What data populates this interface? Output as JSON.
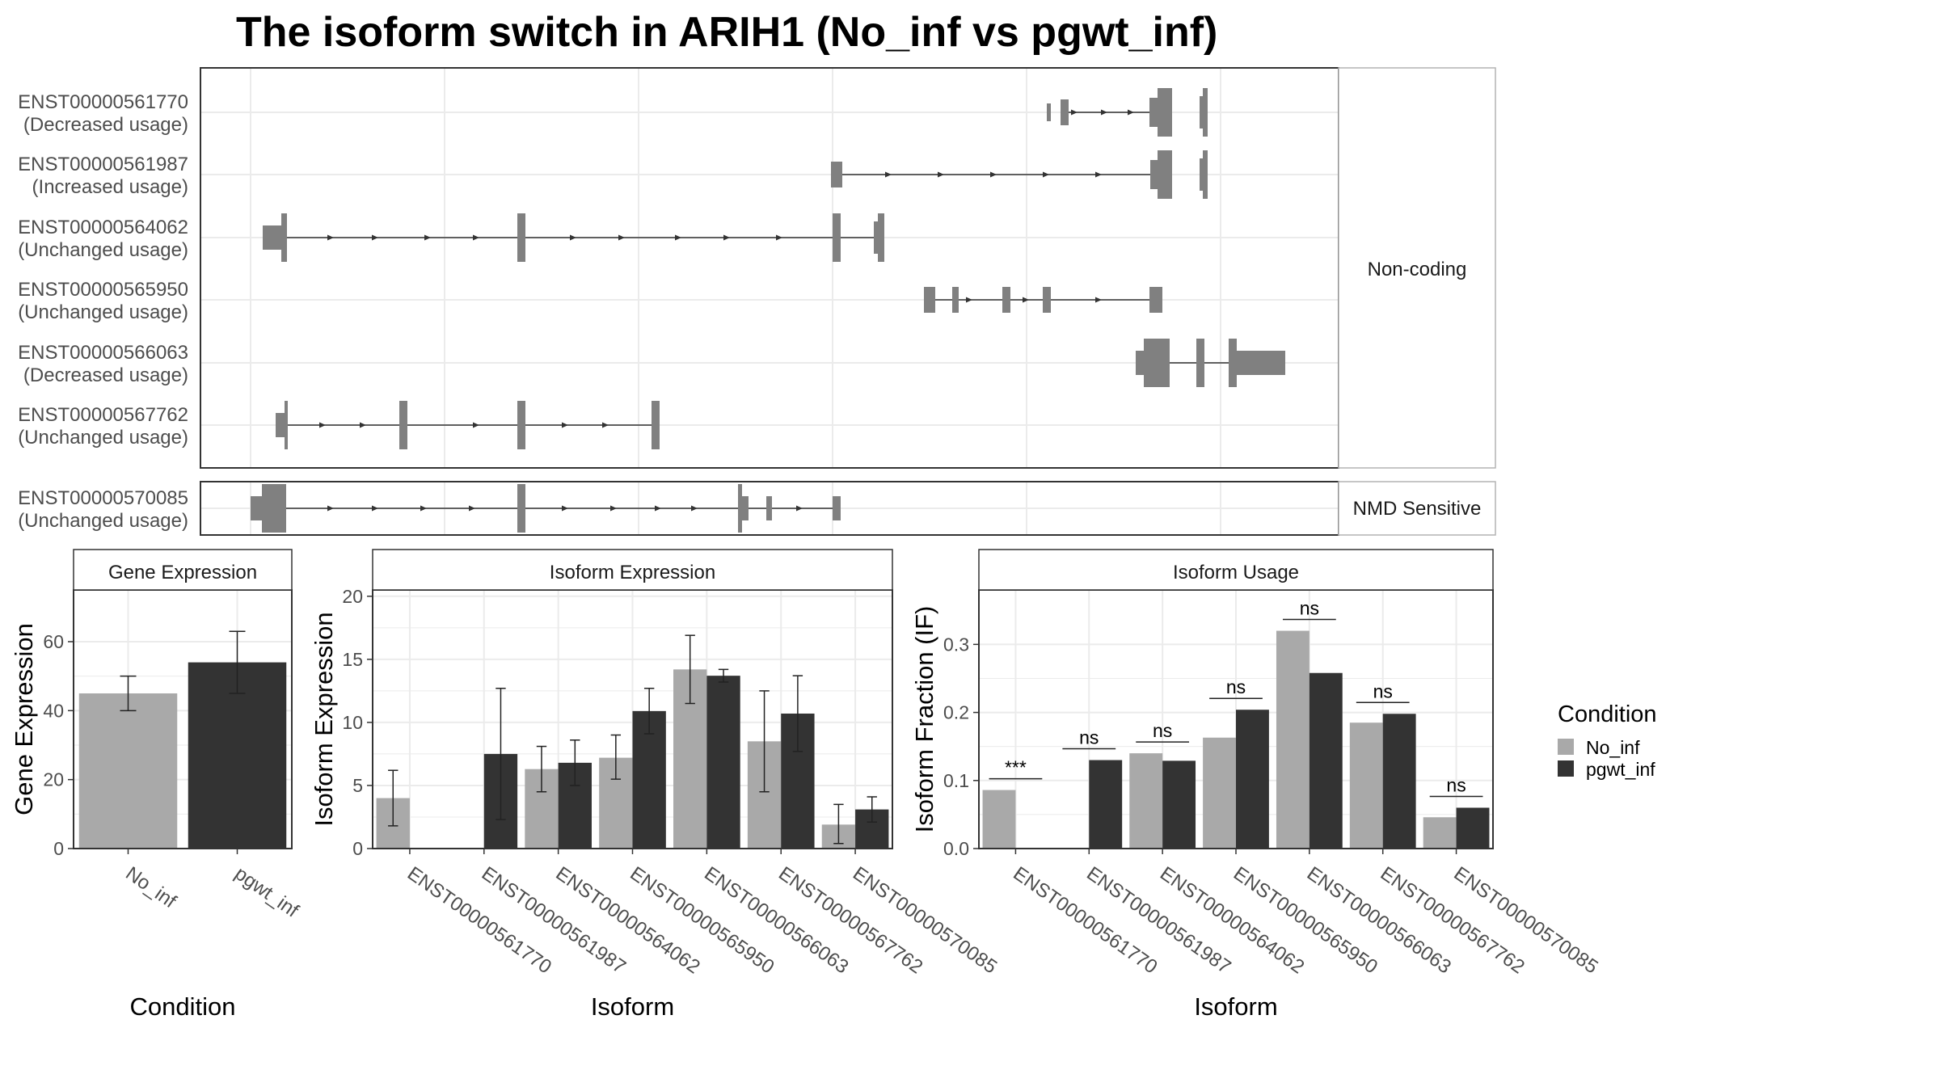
{
  "title": "The isoform switch in ARIH1 (No_inf vs pgwt_inf)",
  "colors": {
    "No_inf": "#a9a9a9",
    "pgwt_inf": "#333333",
    "exon": "#808080",
    "panel_border": "#333333",
    "grid": "#ebebeb",
    "strip_border": "#b3b3b3"
  },
  "structure": {
    "facets": [
      {
        "label": "Non-coding",
        "rows": [
          {
            "id": "ENST00000561770",
            "usage": "(Decreased usage)"
          },
          {
            "id": "ENST00000561987",
            "usage": "(Increased usage)"
          },
          {
            "id": "ENST00000564062",
            "usage": "(Unchanged usage)"
          },
          {
            "id": "ENST00000565950",
            "usage": "(Unchanged usage)"
          },
          {
            "id": "ENST00000566063",
            "usage": "(Decreased usage)"
          },
          {
            "id": "ENST00000567762",
            "usage": "(Unchanged usage)"
          }
        ]
      },
      {
        "label": "NMD Sensitive",
        "rows": [
          {
            "id": "ENST00000570085",
            "usage": "(Unchanged usage)"
          }
        ]
      }
    ]
  },
  "legend": {
    "title": "Condition",
    "items": [
      "No_inf",
      "pgwt_inf"
    ]
  },
  "chart_data": [
    {
      "type": "bar",
      "title": "Gene Expression",
      "xlabel": "Condition",
      "ylabel": "Gene Expression",
      "categories": [
        "No_inf",
        "pgwt_inf"
      ],
      "values": [
        45,
        54
      ],
      "error_low": [
        40,
        45
      ],
      "error_high": [
        50,
        63
      ],
      "ylim": [
        0,
        75
      ],
      "yticks": [
        0,
        20,
        40,
        60
      ],
      "grid": true
    },
    {
      "type": "bar",
      "title": "Isoform Expression",
      "xlabel": "Isoform",
      "ylabel": "Isoform Expression",
      "categories": [
        "ENST00000561770",
        "ENST00000561987",
        "ENST00000564062",
        "ENST00000565950",
        "ENST00000566063",
        "ENST00000567762",
        "ENST00000570085"
      ],
      "series": [
        {
          "name": "No_inf",
          "values": [
            4.0,
            0,
            6.3,
            7.2,
            14.2,
            8.5,
            1.9
          ],
          "error_low": [
            1.8,
            0,
            4.5,
            5.5,
            11.5,
            4.5,
            0.4
          ],
          "error_high": [
            6.2,
            0,
            8.1,
            9.0,
            16.9,
            12.5,
            3.5
          ]
        },
        {
          "name": "pgwt_inf",
          "values": [
            0,
            7.5,
            6.8,
            10.9,
            13.7,
            10.7,
            3.1
          ],
          "error_low": [
            0,
            2.3,
            5.0,
            9.1,
            13.2,
            7.7,
            2.1
          ],
          "error_high": [
            0,
            12.7,
            8.6,
            12.7,
            14.2,
            13.7,
            4.1
          ]
        }
      ],
      "ylim": [
        0,
        20.5
      ],
      "yticks": [
        0,
        5,
        10,
        15,
        20
      ],
      "grid": true
    },
    {
      "type": "bar",
      "title": "Isoform Usage",
      "xlabel": "Isoform",
      "ylabel": "Isoform Fraction (IF)",
      "categories": [
        "ENST00000561770",
        "ENST00000561987",
        "ENST00000564062",
        "ENST00000565950",
        "ENST00000566063",
        "ENST00000567762",
        "ENST00000570085"
      ],
      "series": [
        {
          "name": "No_inf",
          "values": [
            0.086,
            0,
            0.14,
            0.163,
            0.32,
            0.185,
            0.046
          ]
        },
        {
          "name": "pgwt_inf",
          "values": [
            0,
            0.13,
            0.129,
            0.204,
            0.258,
            0.198,
            0.06
          ]
        }
      ],
      "significance": [
        "***",
        "ns",
        "ns",
        "ns",
        "ns",
        "ns",
        "ns"
      ],
      "ylim": [
        0,
        0.38
      ],
      "yticks": [
        0.0,
        0.1,
        0.2,
        0.3
      ],
      "grid": true
    }
  ]
}
